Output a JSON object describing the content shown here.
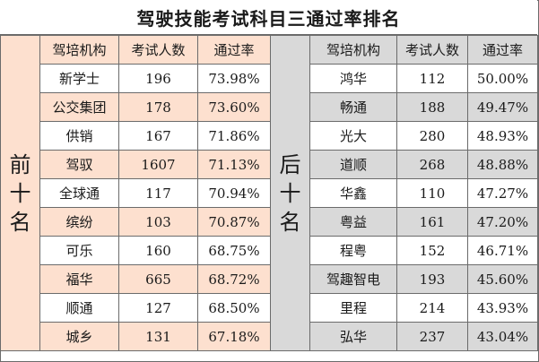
{
  "title": "驾驶技能考试科目三通过率排名",
  "colors": {
    "top_accent": "#fde0cf",
    "bottom_accent": "#d9d9d9",
    "white": "#ffffff",
    "border": "#6b6b6b"
  },
  "headers": [
    "驾培机构",
    "考试人数",
    "通过率"
  ],
  "top": {
    "label_chars": [
      "前",
      "十",
      "名"
    ],
    "rows": [
      {
        "name": "新学士",
        "count": "196",
        "rate": "73.98%"
      },
      {
        "name": "公交集团",
        "count": "178",
        "rate": "73.60%"
      },
      {
        "name": "供销",
        "count": "167",
        "rate": "71.86%"
      },
      {
        "name": "驾驭",
        "count": "1607",
        "rate": "71.13%"
      },
      {
        "name": "全球通",
        "count": "117",
        "rate": "70.94%"
      },
      {
        "name": "缤纷",
        "count": "103",
        "rate": "70.87%"
      },
      {
        "name": "可乐",
        "count": "160",
        "rate": "68.75%"
      },
      {
        "name": "福华",
        "count": "665",
        "rate": "68.72%"
      },
      {
        "name": "顺通",
        "count": "127",
        "rate": "68.50%"
      },
      {
        "name": "城乡",
        "count": "131",
        "rate": "67.18%"
      }
    ]
  },
  "bottom": {
    "label_chars": [
      "后",
      "十",
      "名"
    ],
    "rows": [
      {
        "name": "鸿华",
        "count": "112",
        "rate": "50.00%"
      },
      {
        "name": "畅通",
        "count": "188",
        "rate": "49.47%"
      },
      {
        "name": "光大",
        "count": "280",
        "rate": "48.93%"
      },
      {
        "name": "道顺",
        "count": "268",
        "rate": "48.88%"
      },
      {
        "name": "华鑫",
        "count": "110",
        "rate": "47.27%"
      },
      {
        "name": "粤益",
        "count": "161",
        "rate": "47.20%"
      },
      {
        "name": "程粤",
        "count": "152",
        "rate": "46.71%"
      },
      {
        "name": "驾趣智电",
        "count": "193",
        "rate": "45.60%"
      },
      {
        "name": "里程",
        "count": "214",
        "rate": "43.93%"
      },
      {
        "name": "弘华",
        "count": "237",
        "rate": "43.04%"
      }
    ]
  }
}
